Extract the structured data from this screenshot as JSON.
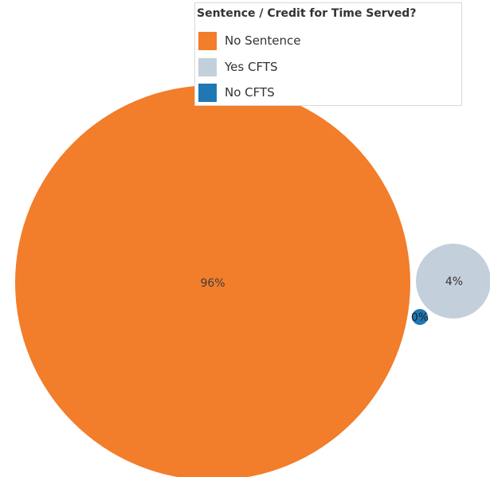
{
  "chart_data": {
    "type": "bubble",
    "legend": {
      "title": "Sentence / Credit for Time Served?",
      "position": "top-right"
    },
    "series": [
      {
        "name": "No Sentence",
        "value_pct": 96,
        "label": "96%",
        "color": "#f27d2a"
      },
      {
        "name": "Yes CFTS",
        "value_pct": 4,
        "label": "4%",
        "color": "#c4cfdc"
      },
      {
        "name": "No CFTS",
        "value_pct": 0,
        "label": "0%",
        "color": "#1f78b4"
      }
    ]
  }
}
